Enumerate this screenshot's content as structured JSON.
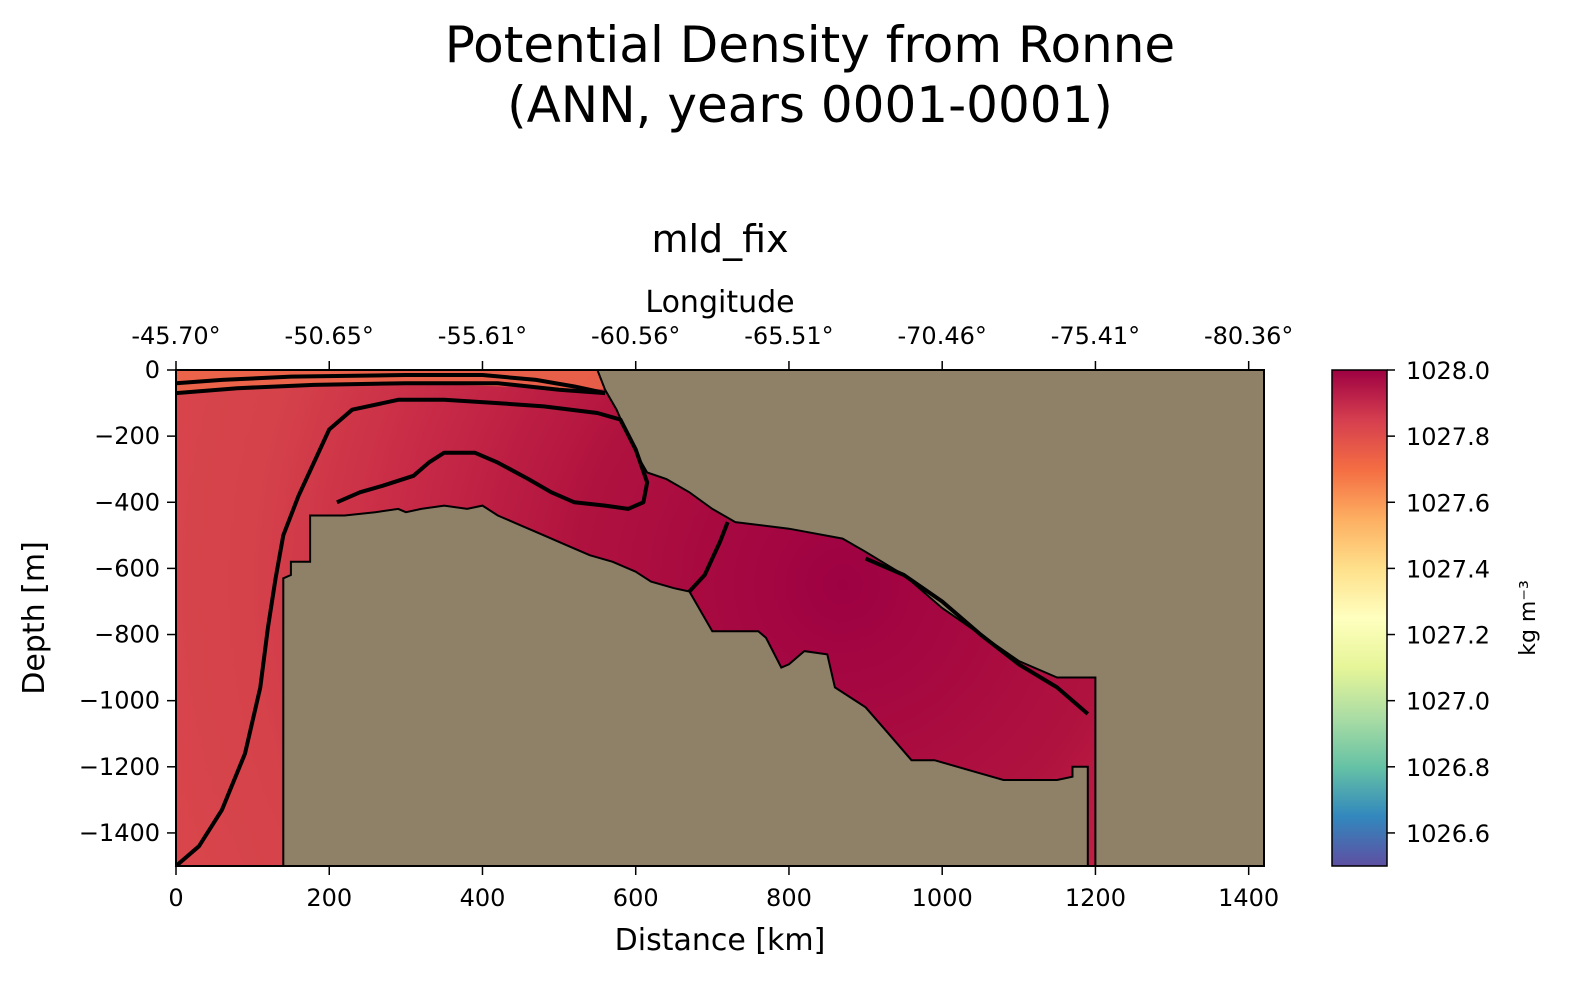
{
  "figure": {
    "title_line1": "Potential Density from Ronne",
    "title_line2": "(ANN, years 0001-0001)",
    "subtitle": "mld_fix"
  },
  "colors": {
    "land": "#8f8068",
    "contour": "#000000",
    "colormap": [
      "#5e4fa2",
      "#3288bd",
      "#66c2a5",
      "#abdda4",
      "#e6f598",
      "#ffffbf",
      "#fee08b",
      "#fdae61",
      "#f46d43",
      "#d53e4f",
      "#9e0142"
    ]
  },
  "chart_data": {
    "type": "heatmap",
    "description_fields": "vertical ocean transect of potential density",
    "xlabel": "Distance [km]",
    "ylabel": "Depth [m]",
    "top_xlabel": "Longitude",
    "xlim": [
      0,
      1420
    ],
    "ylim": [
      -1500,
      0
    ],
    "x_ticks": [
      0,
      200,
      400,
      600,
      800,
      1000,
      1200,
      1400
    ],
    "x_tick_labels": [
      "0",
      "200",
      "400",
      "600",
      "800",
      "1000",
      "1200",
      "1400"
    ],
    "y_ticks": [
      0,
      -200,
      -400,
      -600,
      -800,
      -1000,
      -1200,
      -1400
    ],
    "y_tick_labels": [
      "0",
      "−200",
      "−400",
      "−600",
      "−800",
      "−1000",
      "−1200",
      "−1400"
    ],
    "top_ticks_km": [
      0,
      200,
      400,
      600,
      800,
      1000,
      1200,
      1400
    ],
    "top_tick_labels": [
      "-45.70°",
      "-50.65°",
      "-55.61°",
      "-60.56°",
      "-65.51°",
      "-70.46°",
      "-75.41°",
      "-80.36°"
    ],
    "colorbar": {
      "range": [
        1026.5,
        1028.0
      ],
      "ticks": [
        1028.0,
        1027.8,
        1027.6,
        1027.4,
        1027.2,
        1027.0,
        1026.8,
        1026.6
      ],
      "tick_labels": [
        "1028.0",
        "1027.8",
        "1027.6",
        "1027.4",
        "1027.2",
        "1027.0",
        "1026.8",
        "1026.6"
      ],
      "unit_label": "kg m⁻³"
    },
    "bathymetry": [
      [
        0,
        -1500
      ],
      [
        140,
        -1500
      ],
      [
        140,
        -630
      ],
      [
        150,
        -620
      ],
      [
        150,
        -580
      ],
      [
        175,
        -580
      ],
      [
        175,
        -440
      ],
      [
        220,
        -440
      ],
      [
        260,
        -430
      ],
      [
        290,
        -420
      ],
      [
        300,
        -430
      ],
      [
        320,
        -420
      ],
      [
        350,
        -410
      ],
      [
        380,
        -420
      ],
      [
        400,
        -410
      ],
      [
        420,
        -440
      ],
      [
        450,
        -470
      ],
      [
        480,
        -500
      ],
      [
        510,
        -530
      ],
      [
        540,
        -560
      ],
      [
        570,
        -580
      ],
      [
        600,
        -610
      ],
      [
        620,
        -640
      ],
      [
        650,
        -660
      ],
      [
        670,
        -670
      ],
      [
        700,
        -790
      ],
      [
        730,
        -790
      ],
      [
        750,
        -790
      ],
      [
        760,
        -790
      ],
      [
        770,
        -810
      ],
      [
        790,
        -900
      ],
      [
        800,
        -890
      ],
      [
        820,
        -850
      ],
      [
        850,
        -860
      ],
      [
        860,
        -960
      ],
      [
        900,
        -1020
      ],
      [
        930,
        -1100
      ],
      [
        960,
        -1180
      ],
      [
        990,
        -1180
      ],
      [
        1050,
        -1220
      ],
      [
        1080,
        -1240
      ],
      [
        1150,
        -1240
      ],
      [
        1170,
        -1230
      ],
      [
        1170,
        -1200
      ],
      [
        1190,
        -1200
      ],
      [
        1190,
        -1500
      ]
    ],
    "shelf_surface": [
      [
        550,
        0
      ],
      [
        560,
        -60
      ],
      [
        575,
        -120
      ],
      [
        590,
        -200
      ],
      [
        605,
        -270
      ],
      [
        615,
        -310
      ],
      [
        640,
        -330
      ],
      [
        670,
        -370
      ],
      [
        700,
        -420
      ],
      [
        730,
        -460
      ],
      [
        800,
        -480
      ],
      [
        870,
        -510
      ],
      [
        900,
        -550
      ],
      [
        950,
        -620
      ],
      [
        1000,
        -720
      ],
      [
        1050,
        -800
      ],
      [
        1100,
        -880
      ],
      [
        1150,
        -930
      ],
      [
        1190,
        -930
      ]
    ],
    "contours": [
      {
        "value": 1027.9,
        "points": [
          [
            0,
            -1500
          ],
          [
            30,
            -1440
          ],
          [
            60,
            -1330
          ],
          [
            90,
            -1160
          ],
          [
            110,
            -960
          ],
          [
            120,
            -780
          ],
          [
            130,
            -630
          ],
          [
            140,
            -500
          ],
          [
            160,
            -380
          ],
          [
            180,
            -280
          ],
          [
            200,
            -180
          ],
          [
            230,
            -120
          ],
          [
            290,
            -90
          ],
          [
            350,
            -90
          ],
          [
            420,
            -100
          ],
          [
            480,
            -110
          ],
          [
            550,
            -130
          ],
          [
            580,
            -150
          ],
          [
            600,
            -240
          ],
          [
            615,
            -340
          ],
          [
            610,
            -400
          ],
          [
            590,
            -420
          ],
          [
            560,
            -410
          ],
          [
            520,
            -400
          ],
          [
            490,
            -370
          ],
          [
            460,
            -330
          ],
          [
            420,
            -280
          ],
          [
            390,
            -250
          ],
          [
            350,
            -250
          ],
          [
            330,
            -280
          ],
          [
            310,
            -320
          ],
          [
            270,
            -350
          ],
          [
            240,
            -370
          ],
          [
            210,
            -400
          ]
        ]
      },
      {
        "value": 1027.95,
        "points": [
          [
            720,
            -460
          ],
          [
            710,
            -520
          ],
          [
            700,
            -570
          ],
          [
            690,
            -620
          ],
          [
            670,
            -670
          ]
        ]
      },
      {
        "value": 1027.95,
        "points": [
          [
            900,
            -570
          ],
          [
            950,
            -620
          ],
          [
            1000,
            -700
          ],
          [
            1050,
            -800
          ],
          [
            1100,
            -890
          ],
          [
            1150,
            -960
          ],
          [
            1190,
            -1040
          ]
        ]
      }
    ],
    "surface_contours": [
      [
        [
          0,
          -40
        ],
        [
          60,
          -30
        ],
        [
          150,
          -20
        ],
        [
          300,
          -15
        ],
        [
          400,
          -15
        ],
        [
          470,
          -30
        ],
        [
          520,
          -50
        ],
        [
          560,
          -70
        ]
      ],
      [
        [
          0,
          -70
        ],
        [
          80,
          -55
        ],
        [
          180,
          -45
        ],
        [
          300,
          -40
        ],
        [
          420,
          -40
        ],
        [
          500,
          -60
        ],
        [
          560,
          -70
        ]
      ]
    ],
    "dense_core_km": 870,
    "dense_core_depth": -650
  }
}
